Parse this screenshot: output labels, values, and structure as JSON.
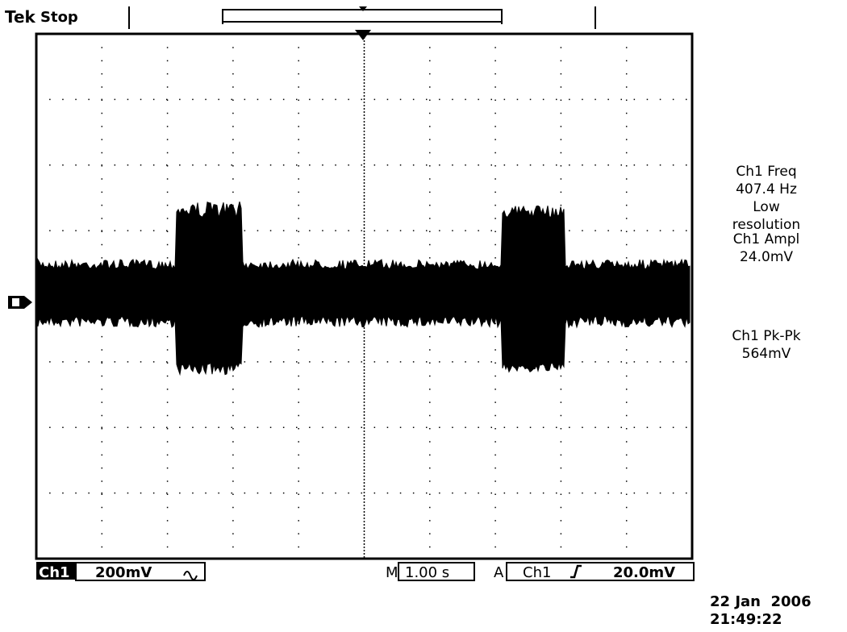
{
  "header": {
    "brand": "Tek",
    "status": "Stop"
  },
  "measurements": [
    {
      "lines": [
        "Ch1 Freq",
        "407.4 Hz",
        "Low",
        "resolution"
      ]
    },
    {
      "lines": [
        "Ch1 Ampl",
        "24.0mV"
      ]
    },
    {
      "lines": [
        "Ch1 Pk-Pk",
        "564mV"
      ]
    }
  ],
  "footer": {
    "channel": "Ch1",
    "scale": "200mV",
    "time_prefix": "M",
    "timebase": "1.00 s",
    "trigger_prefix": "A",
    "trigger_source": "Ch1",
    "trigger_level": "20.0mV"
  },
  "timestamp": {
    "date": "22 Jan  2006",
    "time": "21:49:22"
  }
}
